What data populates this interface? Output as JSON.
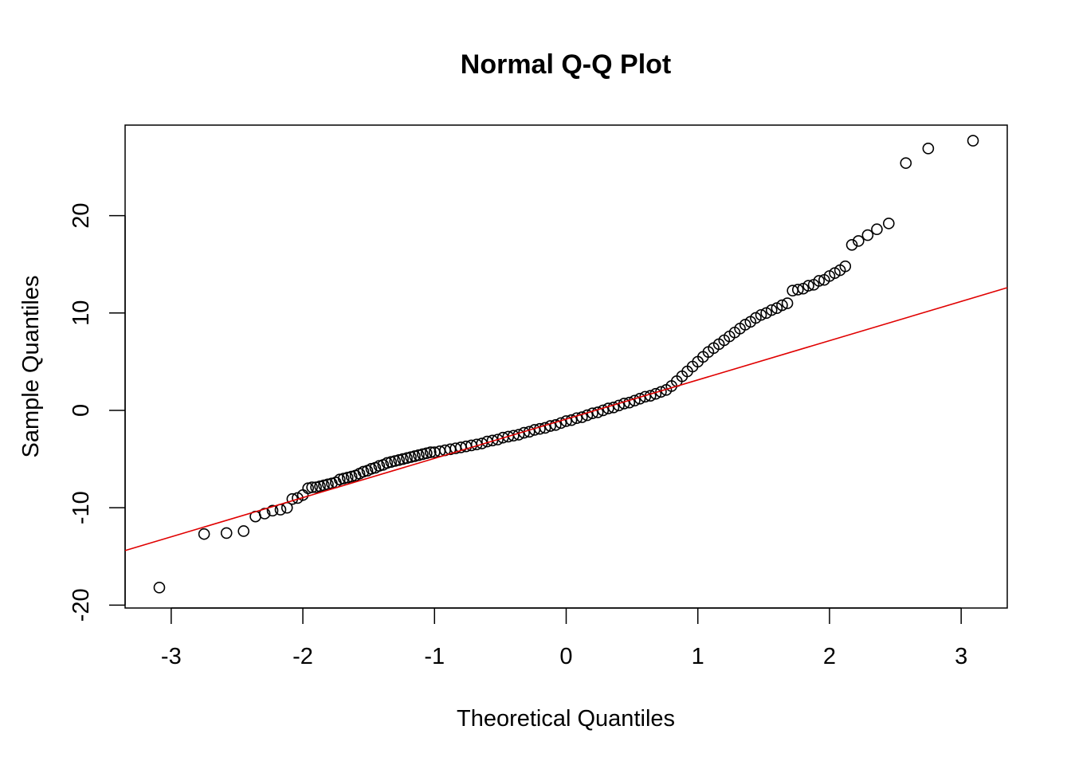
{
  "chart_data": {
    "type": "scatter",
    "title": "Normal Q-Q Plot",
    "xlabel": "Theoretical Quantiles",
    "ylabel": "Sample Quantiles",
    "xlim": [
      -3.35,
      3.35
    ],
    "ylim": [
      -20.3,
      29.3
    ],
    "x_ticks": [
      -3,
      -2,
      -1,
      0,
      1,
      2,
      3
    ],
    "x_tick_labels": [
      "-3",
      "-2",
      "-1",
      "0",
      "1",
      "2",
      "3"
    ],
    "y_ticks": [
      -20,
      -10,
      0,
      10,
      20
    ],
    "y_tick_labels": [
      "-20",
      "-10",
      "0",
      "10",
      "20"
    ],
    "grid": false,
    "legend": "none",
    "colors": {
      "points": "#000000",
      "reference_line": "#e00000"
    },
    "reference_line": {
      "x": [
        -3.35,
        3.35
      ],
      "y": [
        -14.4,
        12.6
      ]
    },
    "series": [
      {
        "marker": "open-circle",
        "points": [
          [
            -3.09,
            -18.2
          ],
          [
            -2.75,
            -12.7
          ],
          [
            -2.58,
            -12.6
          ],
          [
            -2.45,
            -12.4
          ],
          [
            -2.36,
            -10.9
          ],
          [
            -2.29,
            -10.6
          ],
          [
            -2.23,
            -10.3
          ],
          [
            -2.17,
            -10.2
          ],
          [
            -2.12,
            -10.0
          ],
          [
            -2.08,
            -9.1
          ],
          [
            -2.04,
            -9.0
          ],
          [
            -2.0,
            -8.7
          ],
          [
            -1.96,
            -8.0
          ],
          [
            -1.93,
            -7.9
          ],
          [
            -1.9,
            -7.9
          ],
          [
            -1.87,
            -7.8
          ],
          [
            -1.84,
            -7.7
          ],
          [
            -1.81,
            -7.6
          ],
          [
            -1.78,
            -7.5
          ],
          [
            -1.75,
            -7.4
          ],
          [
            -1.72,
            -7.1
          ],
          [
            -1.69,
            -7.0
          ],
          [
            -1.66,
            -6.9
          ],
          [
            -1.63,
            -6.8
          ],
          [
            -1.6,
            -6.7
          ],
          [
            -1.57,
            -6.5
          ],
          [
            -1.54,
            -6.3
          ],
          [
            -1.51,
            -6.2
          ],
          [
            -1.48,
            -6.0
          ],
          [
            -1.45,
            -5.9
          ],
          [
            -1.42,
            -5.7
          ],
          [
            -1.39,
            -5.6
          ],
          [
            -1.36,
            -5.4
          ],
          [
            -1.33,
            -5.3
          ],
          [
            -1.3,
            -5.2
          ],
          [
            -1.27,
            -5.1
          ],
          [
            -1.24,
            -5.0
          ],
          [
            -1.21,
            -4.9
          ],
          [
            -1.18,
            -4.8
          ],
          [
            -1.15,
            -4.7
          ],
          [
            -1.12,
            -4.6
          ],
          [
            -1.09,
            -4.5
          ],
          [
            -1.06,
            -4.4
          ],
          [
            -1.03,
            -4.3
          ],
          [
            -1.0,
            -4.3
          ],
          [
            -0.96,
            -4.2
          ],
          [
            -0.92,
            -4.1
          ],
          [
            -0.88,
            -4.0
          ],
          [
            -0.84,
            -3.9
          ],
          [
            -0.8,
            -3.8
          ],
          [
            -0.76,
            -3.7
          ],
          [
            -0.72,
            -3.6
          ],
          [
            -0.68,
            -3.5
          ],
          [
            -0.64,
            -3.4
          ],
          [
            -0.6,
            -3.2
          ],
          [
            -0.56,
            -3.1
          ],
          [
            -0.52,
            -3.0
          ],
          [
            -0.48,
            -2.8
          ],
          [
            -0.44,
            -2.7
          ],
          [
            -0.4,
            -2.6
          ],
          [
            -0.36,
            -2.5
          ],
          [
            -0.32,
            -2.3
          ],
          [
            -0.28,
            -2.2
          ],
          [
            -0.24,
            -2.0
          ],
          [
            -0.2,
            -1.9
          ],
          [
            -0.16,
            -1.8
          ],
          [
            -0.12,
            -1.6
          ],
          [
            -0.08,
            -1.5
          ],
          [
            -0.04,
            -1.3
          ],
          [
            0.0,
            -1.1
          ],
          [
            0.04,
            -1.0
          ],
          [
            0.08,
            -0.8
          ],
          [
            0.12,
            -0.7
          ],
          [
            0.16,
            -0.5
          ],
          [
            0.2,
            -0.3
          ],
          [
            0.24,
            -0.2
          ],
          [
            0.28,
            0.0
          ],
          [
            0.32,
            0.2
          ],
          [
            0.36,
            0.3
          ],
          [
            0.4,
            0.5
          ],
          [
            0.44,
            0.7
          ],
          [
            0.48,
            0.8
          ],
          [
            0.52,
            1.0
          ],
          [
            0.56,
            1.2
          ],
          [
            0.6,
            1.4
          ],
          [
            0.64,
            1.5
          ],
          [
            0.68,
            1.7
          ],
          [
            0.72,
            1.9
          ],
          [
            0.76,
            2.1
          ],
          [
            0.8,
            2.5
          ],
          [
            0.84,
            3.0
          ],
          [
            0.88,
            3.5
          ],
          [
            0.92,
            4.0
          ],
          [
            0.96,
            4.5
          ],
          [
            1.0,
            5.0
          ],
          [
            1.04,
            5.5
          ],
          [
            1.08,
            6.0
          ],
          [
            1.12,
            6.4
          ],
          [
            1.16,
            6.8
          ],
          [
            1.2,
            7.2
          ],
          [
            1.24,
            7.6
          ],
          [
            1.28,
            8.0
          ],
          [
            1.32,
            8.4
          ],
          [
            1.36,
            8.8
          ],
          [
            1.4,
            9.1
          ],
          [
            1.44,
            9.5
          ],
          [
            1.48,
            9.8
          ],
          [
            1.52,
            10.0
          ],
          [
            1.56,
            10.3
          ],
          [
            1.6,
            10.5
          ],
          [
            1.64,
            10.8
          ],
          [
            1.68,
            11.0
          ],
          [
            1.72,
            12.3
          ],
          [
            1.76,
            12.4
          ],
          [
            1.8,
            12.5
          ],
          [
            1.84,
            12.8
          ],
          [
            1.88,
            12.9
          ],
          [
            1.92,
            13.3
          ],
          [
            1.96,
            13.4
          ],
          [
            2.0,
            13.8
          ],
          [
            2.04,
            14.1
          ],
          [
            2.08,
            14.4
          ],
          [
            2.12,
            14.8
          ],
          [
            2.17,
            17.0
          ],
          [
            2.22,
            17.4
          ],
          [
            2.29,
            18.0
          ],
          [
            2.36,
            18.6
          ],
          [
            2.45,
            19.2
          ],
          [
            2.58,
            25.4
          ],
          [
            2.75,
            26.9
          ],
          [
            3.09,
            27.7
          ]
        ]
      }
    ]
  }
}
